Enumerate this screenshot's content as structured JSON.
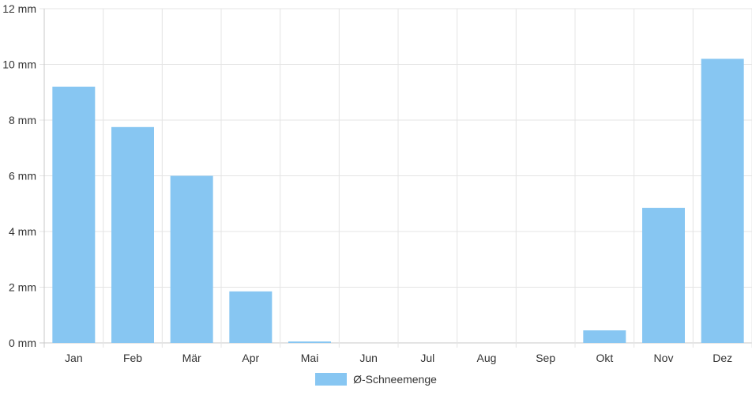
{
  "chart_data": {
    "type": "bar",
    "categories": [
      "Jan",
      "Feb",
      "Mär",
      "Apr",
      "Mai",
      "Jun",
      "Jul",
      "Aug",
      "Sep",
      "Okt",
      "Nov",
      "Dez"
    ],
    "series": [
      {
        "name": "Ø-Schneemenge",
        "values": [
          9.2,
          7.75,
          6.0,
          1.85,
          0.05,
          0,
          0,
          0,
          0,
          0.45,
          4.85,
          10.2
        ],
        "color": "#87c6f2"
      }
    ],
    "ylim": [
      0,
      12
    ],
    "yticks": [
      0,
      2,
      4,
      6,
      8,
      10,
      12
    ],
    "ytick_labels": [
      "0 mm",
      "2 mm",
      "4 mm",
      "6 mm",
      "8 mm",
      "10 mm",
      "12 mm"
    ],
    "grid": true,
    "legend_position": "bottom-center",
    "grid_color": "#e4e4e4",
    "axis_color": "#c8c8c8"
  }
}
